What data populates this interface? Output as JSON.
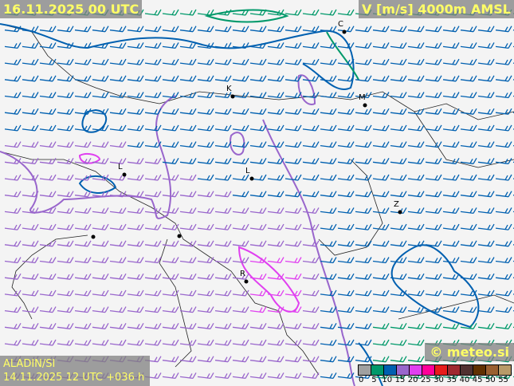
{
  "header": {
    "valid_time": "16.11.2025 00 UTC",
    "parameter": "V [m/s] 4000m AMSL"
  },
  "footer": {
    "model": "ALADIN/SI",
    "run": "14.11.2025 12 UTC +036 h",
    "copyright": "© meteo.si"
  },
  "legend": {
    "colors": [
      "#a0a0a0",
      "#00996a",
      "#0060b0",
      "#9966cc",
      "#e040f0",
      "#ff0099",
      "#e81c1c",
      "#a02830",
      "#503030",
      "#603000",
      "#9a6030",
      "#b89a68"
    ],
    "ticks": [
      "0",
      "5",
      "10",
      "15",
      "20",
      "25",
      "30",
      "35",
      "40",
      "45",
      "50",
      "55"
    ]
  },
  "cities": [
    {
      "label": "C"
    },
    {
      "label": "K"
    },
    {
      "label": "M"
    },
    {
      "label": "L"
    },
    {
      "label": "L"
    },
    {
      "label": "Z"
    },
    {
      "label": "R"
    }
  ],
  "barb_colors": {
    "green": "#00996a",
    "blue": "#0060b0",
    "purple": "#9966cc",
    "magenta": "#e040f0"
  }
}
